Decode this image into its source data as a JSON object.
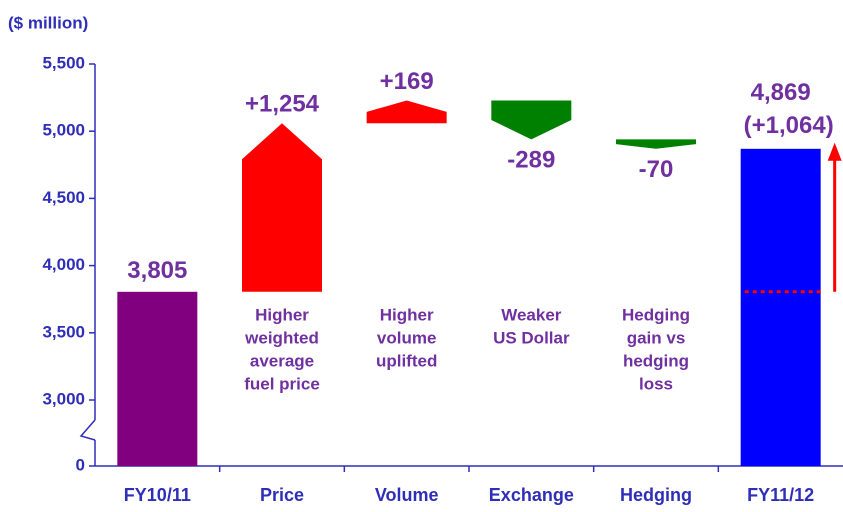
{
  "chart_data": {
    "type": "waterfall",
    "title": "($ million)",
    "categories": [
      "FY10/11",
      "Price",
      "Volume",
      "Exchange",
      "Hedging",
      "FY11/12"
    ],
    "values": [
      3805,
      1254,
      169,
      -289,
      -70,
      4869
    ],
    "value_labels": [
      "3,805",
      "+1,254",
      "+169",
      "-289",
      "-70",
      "4,869"
    ],
    "colors": [
      "#800080",
      "#ff0000",
      "#ff0000",
      "#008000",
      "#008000",
      "#0000ff"
    ],
    "descriptions": [
      null,
      [
        "Higher",
        "weighted",
        "average",
        "fuel price"
      ],
      [
        "Higher",
        "volume",
        "uplifted"
      ],
      [
        "Weaker",
        "US Dollar"
      ],
      [
        "Hedging",
        "gain vs",
        "hedging",
        "loss"
      ],
      null
    ],
    "annotation": "(+1,064)",
    "ylim": [
      0,
      5500
    ],
    "axis_break": [
      0,
      3000
    ],
    "yticks": [
      0,
      {
        "value": 3000,
        "label": "3,000"
      },
      {
        "value": 3500,
        "label": "3,500"
      },
      {
        "value": 4000,
        "label": "4,000"
      },
      {
        "value": 4500,
        "label": "4,500"
      },
      {
        "value": 5000,
        "label": "5,000"
      },
      {
        "value": 5500,
        "label": "5,500"
      }
    ]
  }
}
